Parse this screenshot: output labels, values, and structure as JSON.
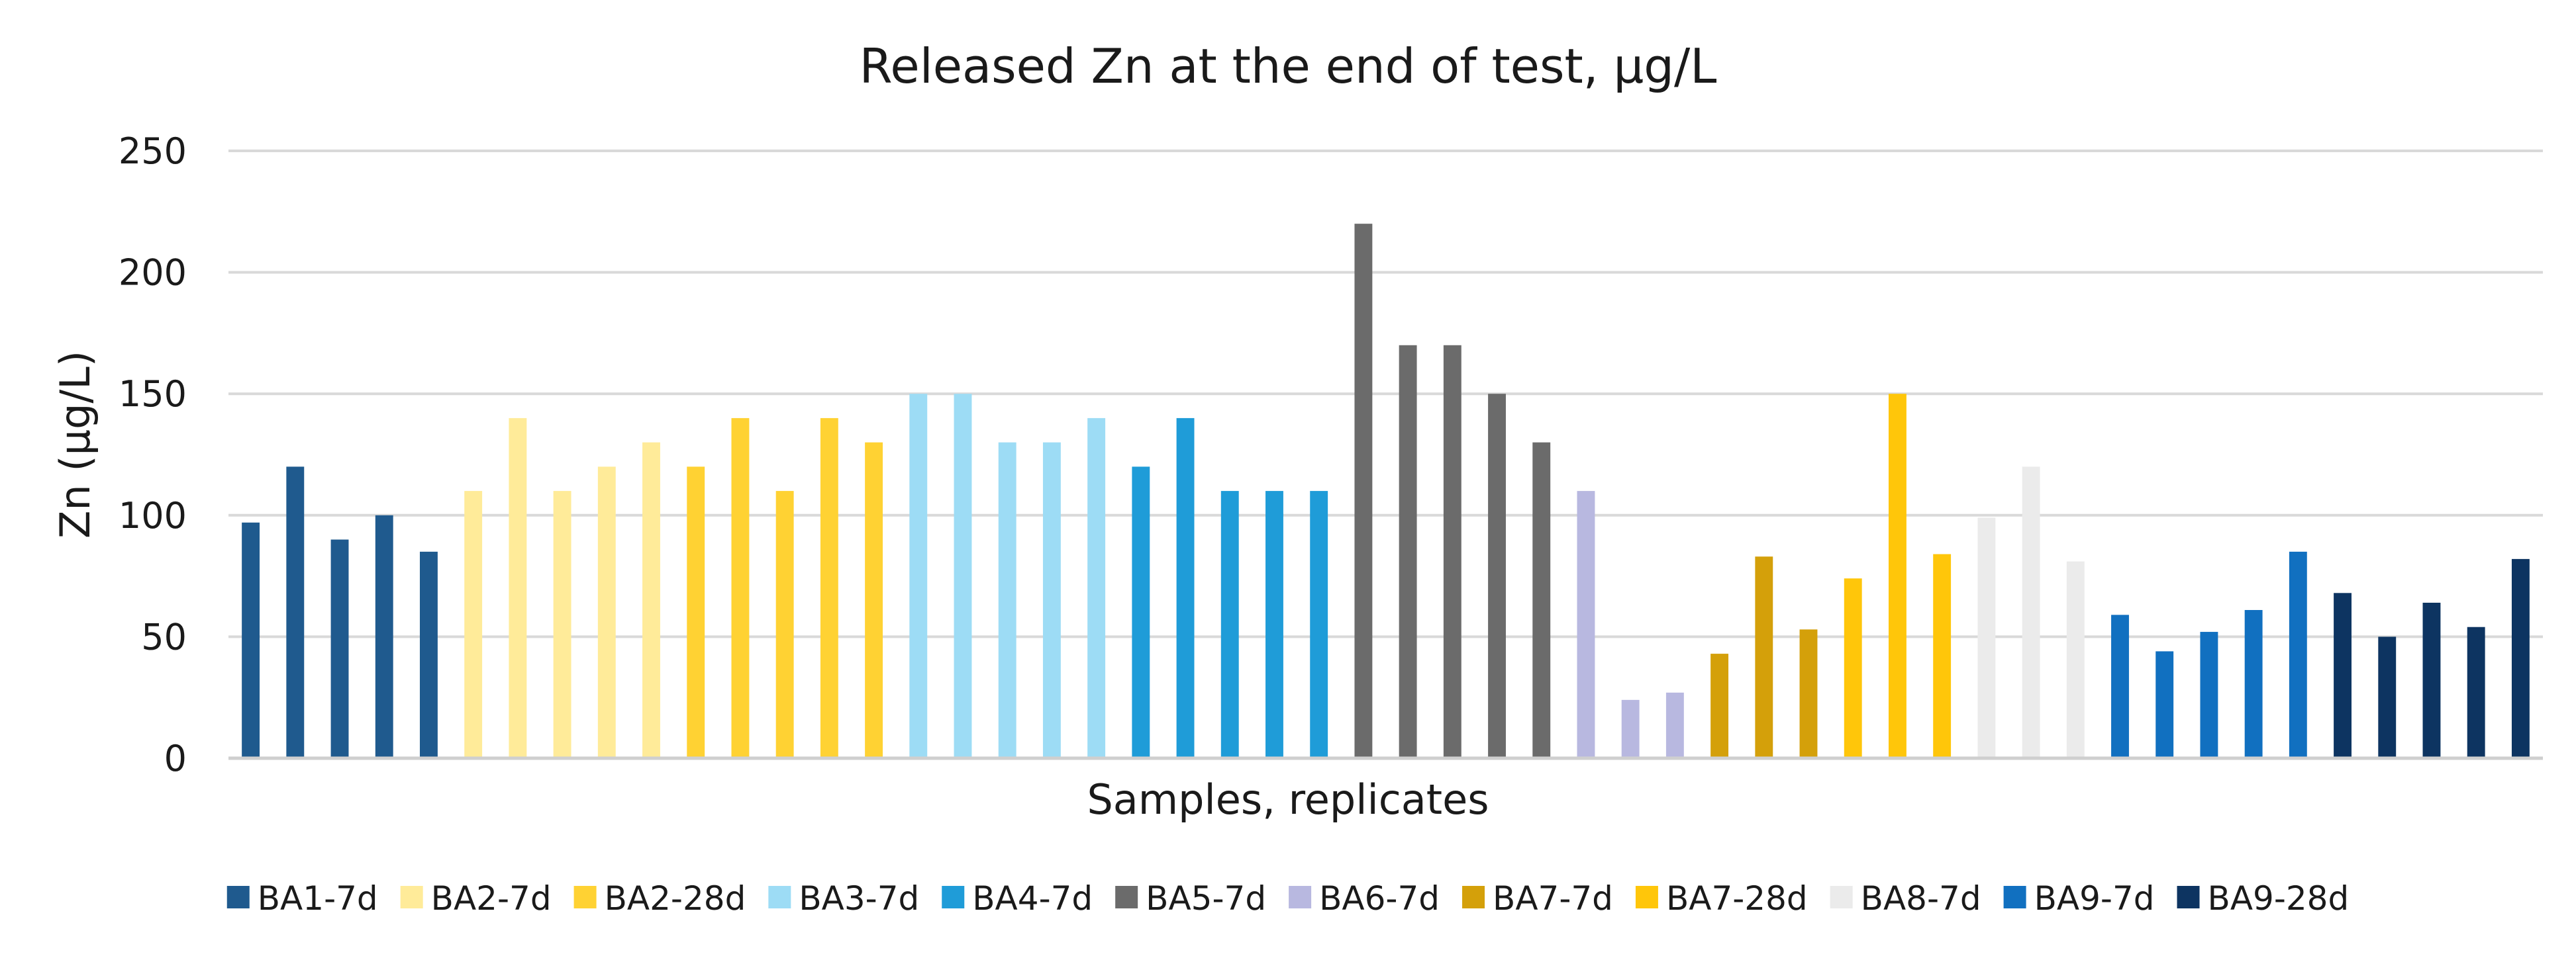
{
  "chart_data": {
    "type": "bar",
    "title": "Released Zn at the end of test, µg/L",
    "xlabel": "Samples, replicates",
    "ylabel": "Zn (µg/L)",
    "ylim": [
      0,
      250
    ],
    "yticks": [
      0,
      50,
      100,
      150,
      200,
      250
    ],
    "grid": true,
    "legend_position": "bottom",
    "series": [
      {
        "name": "BA1-7d",
        "color": "#1f5a8e",
        "values": [
          97,
          120,
          90,
          100,
          85
        ]
      },
      {
        "name": "BA2-7d",
        "color": "#ffeb99",
        "values": [
          110,
          140,
          110,
          120,
          130
        ]
      },
      {
        "name": "BA2-28d",
        "color": "#ffd233",
        "values": [
          120,
          140,
          110,
          140,
          130
        ]
      },
      {
        "name": "BA3-7d",
        "color": "#9ddcf5",
        "values": [
          150,
          150,
          130,
          130,
          140
        ]
      },
      {
        "name": "BA4-7d",
        "color": "#1f9cd8",
        "values": [
          120,
          140,
          110,
          110,
          110
        ]
      },
      {
        "name": "BA5-7d",
        "color": "#6b6b6b",
        "values": [
          220,
          170,
          170,
          150,
          130
        ]
      },
      {
        "name": "BA6-7d",
        "color": "#b8b8e0",
        "values": [
          110,
          24,
          27
        ]
      },
      {
        "name": "BA7-7d",
        "color": "#d4a00a",
        "values": [
          43,
          83,
          53
        ]
      },
      {
        "name": "BA7-28d",
        "color": "#ffc60a",
        "values": [
          74,
          150,
          84
        ]
      },
      {
        "name": "BA8-7d",
        "color": "#ebebeb",
        "values": [
          99,
          120,
          81
        ]
      },
      {
        "name": "BA9-7d",
        "color": "#1170c0",
        "values": [
          59,
          44,
          52,
          61,
          85
        ]
      },
      {
        "name": "BA9-28d",
        "color": "#0d3461",
        "values": [
          68,
          50,
          64,
          54,
          82
        ]
      }
    ]
  }
}
